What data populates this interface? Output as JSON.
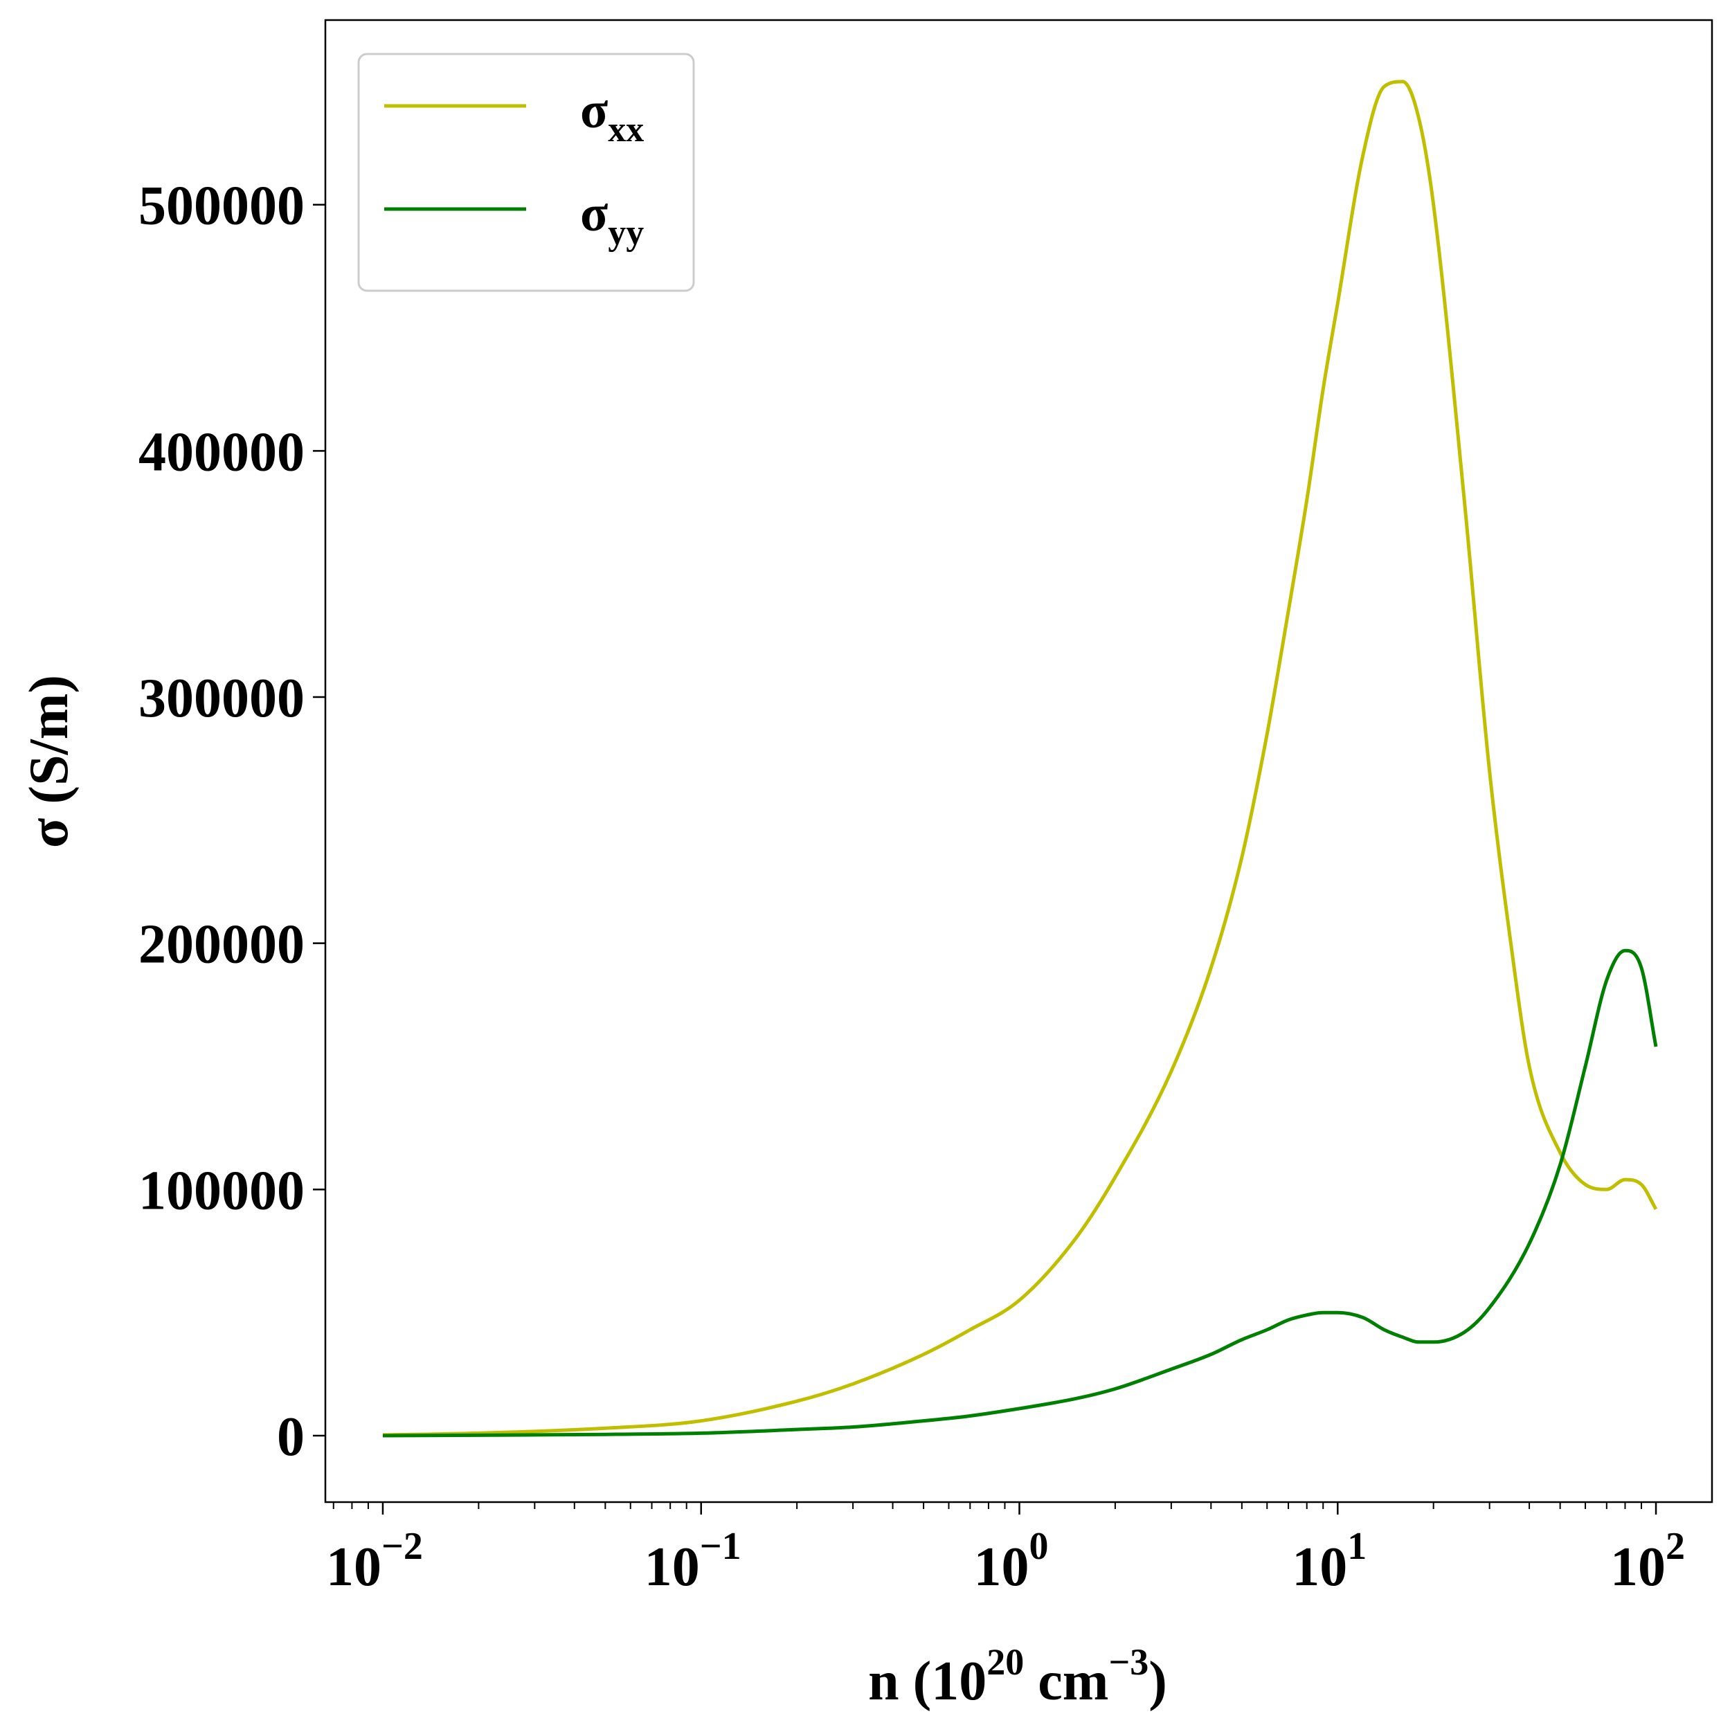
{
  "chart_data": {
    "type": "line",
    "x_scale": "log",
    "xlim": [
      0.0066,
      150
    ],
    "ylim": [
      -27000,
      575000
    ],
    "grid": false,
    "legend_position": "top-left",
    "xlabel": {
      "prefix": "n (10",
      "exp1": "20",
      "mid": " cm",
      "exp2": "−3",
      "suffix": ")"
    },
    "ylabel": "σ (S/m)",
    "x_ticks": [
      {
        "value": 0.01,
        "base": "10",
        "exp": "−2"
      },
      {
        "value": 0.1,
        "base": "10",
        "exp": "−1"
      },
      {
        "value": 1,
        "base": "10",
        "exp": "0"
      },
      {
        "value": 10,
        "base": "10",
        "exp": "1"
      },
      {
        "value": 100,
        "base": "10",
        "exp": "2"
      }
    ],
    "y_ticks": [
      {
        "value": 0,
        "label": "0"
      },
      {
        "value": 100000,
        "label": "100000"
      },
      {
        "value": 200000,
        "label": "200000"
      },
      {
        "value": 300000,
        "label": "300000"
      },
      {
        "value": 400000,
        "label": "400000"
      },
      {
        "value": 500000,
        "label": "500000"
      }
    ],
    "series": [
      {
        "name": "σxx",
        "name_base": "σ",
        "name_sub": "xx",
        "color": "#bfbf00",
        "x": [
          0.01,
          0.02,
          0.05,
          0.1,
          0.2,
          0.3,
          0.5,
          0.7,
          1,
          1.5,
          2,
          3,
          4,
          5,
          6,
          7,
          8,
          9,
          10,
          12,
          14,
          16,
          18,
          20,
          25,
          30,
          35,
          40,
          50,
          60,
          70,
          80,
          90,
          100
        ],
        "y": [
          300,
          1000,
          3000,
          6000,
          14000,
          21000,
          33000,
          43000,
          55000,
          80000,
          105000,
          148000,
          190000,
          235000,
          285000,
          335000,
          380000,
          425000,
          460000,
          520000,
          548000,
          550000,
          535000,
          500000,
          380000,
          270000,
          200000,
          150000,
          115000,
          102000,
          100000,
          104000,
          102000,
          92000
        ]
      },
      {
        "name": "σyy",
        "name_base": "σ",
        "name_sub": "yy",
        "color": "#008000",
        "x": [
          0.01,
          0.03,
          0.05,
          0.1,
          0.2,
          0.3,
          0.5,
          0.7,
          1,
          1.5,
          2,
          3,
          4,
          5,
          6,
          7,
          8,
          9,
          10,
          12,
          14,
          16,
          18,
          20,
          25,
          30,
          40,
          50,
          60,
          70,
          80,
          90,
          100
        ],
        "y": [
          0,
          300,
          500,
          1000,
          2500,
          3500,
          6000,
          8000,
          11000,
          15000,
          19000,
          27000,
          33000,
          39000,
          43000,
          47000,
          49000,
          50000,
          50000,
          48000,
          43000,
          40000,
          38000,
          38000,
          42000,
          52000,
          78000,
          110000,
          150000,
          185000,
          197000,
          190000,
          158000
        ]
      }
    ]
  }
}
